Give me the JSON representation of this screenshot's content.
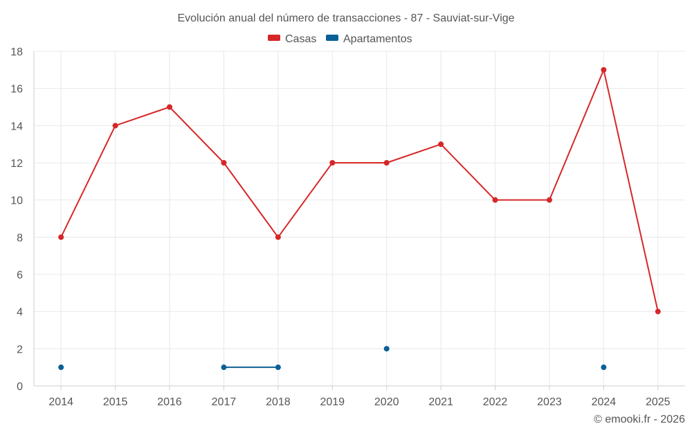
{
  "chart_data": {
    "type": "line",
    "title": "Evolución anual del número de transacciones - 87 - Sauviat-sur-Vige",
    "categories": [
      "2014",
      "2015",
      "2016",
      "2017",
      "2018",
      "2019",
      "2020",
      "2021",
      "2022",
      "2023",
      "2024",
      "2025"
    ],
    "series": [
      {
        "name": "Casas",
        "color": "#d62728",
        "values": [
          8,
          14,
          15,
          12,
          8,
          12,
          12,
          13,
          10,
          10,
          17,
          4
        ]
      },
      {
        "name": "Apartamentos",
        "color": "#0b5f97",
        "values": [
          1,
          null,
          null,
          1,
          1,
          null,
          2,
          null,
          null,
          null,
          1,
          null
        ]
      }
    ],
    "ylim": [
      0,
      18
    ],
    "yticks": [
      0,
      2,
      4,
      6,
      8,
      10,
      12,
      14,
      16,
      18
    ],
    "xlabel": "",
    "ylabel": "",
    "grid": true,
    "legend_position": "top-center"
  },
  "credit": "© emooki.fr - 2026"
}
